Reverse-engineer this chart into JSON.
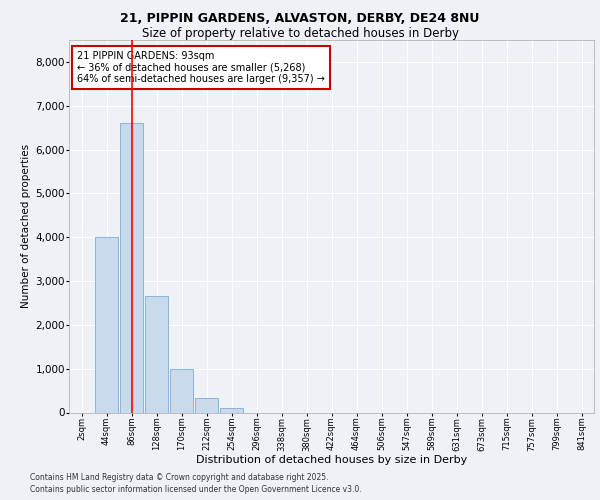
{
  "title_line1": "21, PIPPIN GARDENS, ALVASTON, DERBY, DE24 8NU",
  "title_line2": "Size of property relative to detached houses in Derby",
  "xlabel": "Distribution of detached houses by size in Derby",
  "ylabel": "Number of detached properties",
  "categories": [
    "2sqm",
    "44sqm",
    "86sqm",
    "128sqm",
    "170sqm",
    "212sqm",
    "254sqm",
    "296sqm",
    "338sqm",
    "380sqm",
    "422sqm",
    "464sqm",
    "506sqm",
    "547sqm",
    "589sqm",
    "631sqm",
    "673sqm",
    "715sqm",
    "757sqm",
    "799sqm",
    "841sqm"
  ],
  "values": [
    0,
    4000,
    6600,
    2650,
    1000,
    330,
    100,
    0,
    0,
    0,
    0,
    0,
    0,
    0,
    0,
    0,
    0,
    0,
    0,
    0,
    0
  ],
  "bar_color": "#c9d9ee",
  "bar_edge_color": "#7bafd4",
  "red_line_x": 2,
  "annotation_title": "21 PIPPIN GARDENS: 93sqm",
  "annotation_line1": "← 36% of detached houses are smaller (5,268)",
  "annotation_line2": "64% of semi-detached houses are larger (9,357) →",
  "annotation_box_facecolor": "#ffffff",
  "annotation_box_edgecolor": "#cc0000",
  "ylim": [
    0,
    8500
  ],
  "yticks": [
    0,
    1000,
    2000,
    3000,
    4000,
    5000,
    6000,
    7000,
    8000
  ],
  "footer_line1": "Contains HM Land Registry data © Crown copyright and database right 2025.",
  "footer_line2": "Contains public sector information licensed under the Open Government Licence v3.0.",
  "bg_color": "#eef2f7",
  "grid_color": "#ffffff",
  "title1_fontsize": 9,
  "title2_fontsize": 8.5,
  "ylabel_fontsize": 7.5,
  "xlabel_fontsize": 8,
  "ytick_fontsize": 7.5,
  "xtick_fontsize": 6,
  "annot_fontsize": 7,
  "footer_fontsize": 5.5
}
